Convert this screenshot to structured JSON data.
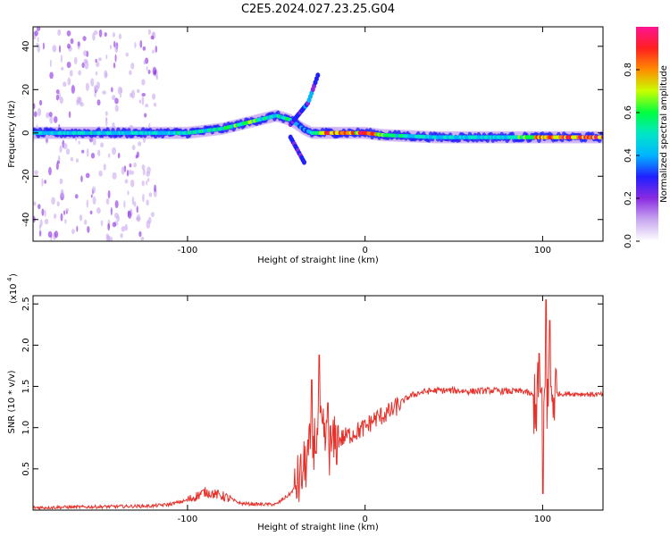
{
  "title": "C2E5.2024.027.23.25.G04",
  "chart_data": [
    {
      "type": "heatmap",
      "xlabel": "Height of straight line (km)",
      "ylabel": "Frequency (Hz)",
      "xlim": [
        -187,
        134
      ],
      "ylim": [
        -50,
        49
      ],
      "xticks": [
        -100,
        0,
        100
      ],
      "xtick_labels": [
        "-100",
        "0",
        "100"
      ],
      "yticks": [
        -40,
        -20,
        0,
        20,
        40
      ],
      "ytick_labels": [
        "-40",
        "-20",
        "0",
        "20",
        "40"
      ],
      "colorbar": {
        "label": "Normalized spectral amplitude",
        "range": [
          0,
          1
        ],
        "ticks": [
          0.0,
          0.2,
          0.4,
          0.6,
          0.8
        ],
        "tick_labels": [
          "0.0",
          "0.2",
          "0.4",
          "0.6",
          "0.8"
        ],
        "colormap": [
          "#ffffff",
          "#c8a8f0",
          "#8a2be2",
          "#2020ff",
          "#00b4ff",
          "#00e6c8",
          "#00ff40",
          "#c8ff00",
          "#ff8c00",
          "#ff2020",
          "#ff1493"
        ]
      },
      "ridge": {
        "x": [
          -187,
          -150,
          -120,
          -100,
          -80,
          -70,
          -60,
          -50,
          -42,
          -35,
          -30,
          -25,
          -20,
          -10,
          0,
          10,
          40,
          80,
          100,
          134
        ],
        "freq": [
          0,
          0,
          0,
          0,
          2,
          4,
          6,
          8,
          6,
          2,
          0,
          0,
          0,
          0,
          0,
          -1,
          -2,
          -2,
          -2,
          -2
        ],
        "amplitude": [
          0.45,
          0.5,
          0.45,
          0.5,
          0.55,
          0.6,
          0.6,
          0.5,
          0.55,
          0.4,
          0.5,
          0.75,
          0.85,
          0.75,
          0.95,
          0.6,
          0.45,
          0.5,
          0.8,
          0.95
        ]
      },
      "branches": [
        {
          "x": [
            -42,
            -32,
            -26
          ],
          "freq": [
            4,
            14,
            28
          ],
          "amplitude": 0.3
        },
        {
          "x": [
            -42,
            -34
          ],
          "freq": [
            -2,
            -14
          ],
          "amplitude": 0.25
        }
      ]
    },
    {
      "type": "line",
      "xlabel": "Height of straight line (km)",
      "ylabel": "SNR (10 * v/v)",
      "yscale_label": "(x10",
      "yscale_exponent": "4",
      "xlim": [
        -187,
        134
      ],
      "ylim": [
        0,
        2.6
      ],
      "xticks": [
        -100,
        0,
        100
      ],
      "xtick_labels": [
        "-100",
        "0",
        "100"
      ],
      "yticks": [
        0.5,
        1.0,
        1.5,
        2.0,
        2.5
      ],
      "ytick_labels": [
        "0.5",
        "1.0",
        "1.5",
        "2.0",
        "2.5"
      ],
      "color": "#e8302a",
      "x": [
        -187,
        -150,
        -120,
        -110,
        -100,
        -90,
        -80,
        -70,
        -60,
        -50,
        -42,
        -36,
        -30,
        -25,
        -20,
        -15,
        -10,
        -5,
        0,
        5,
        10,
        15,
        20,
        25,
        30,
        35,
        40,
        50,
        60,
        70,
        80,
        90,
        95,
        98,
        100,
        103,
        106,
        110,
        120,
        134
      ],
      "y": [
        0.03,
        0.04,
        0.05,
        0.07,
        0.12,
        0.22,
        0.17,
        0.08,
        0.07,
        0.07,
        0.2,
        0.4,
        0.8,
        0.95,
        0.75,
        0.85,
        0.9,
        0.95,
        1.0,
        1.1,
        1.15,
        1.2,
        1.3,
        1.38,
        1.42,
        1.44,
        1.45,
        1.45,
        1.44,
        1.45,
        1.44,
        1.44,
        1.38,
        1.3,
        1.3,
        1.35,
        1.42,
        1.41,
        1.41,
        1.4
      ],
      "peaks": [
        {
          "x": -26,
          "y": 1.88
        },
        {
          "x": -30,
          "y": 1.58
        },
        {
          "x": -21,
          "y": 1.3
        },
        {
          "x": 102,
          "y": 2.55
        },
        {
          "x": 100,
          "y": 0.2
        },
        {
          "x": 104,
          "y": 2.3
        },
        {
          "x": 98,
          "y": 1.9
        }
      ]
    }
  ]
}
